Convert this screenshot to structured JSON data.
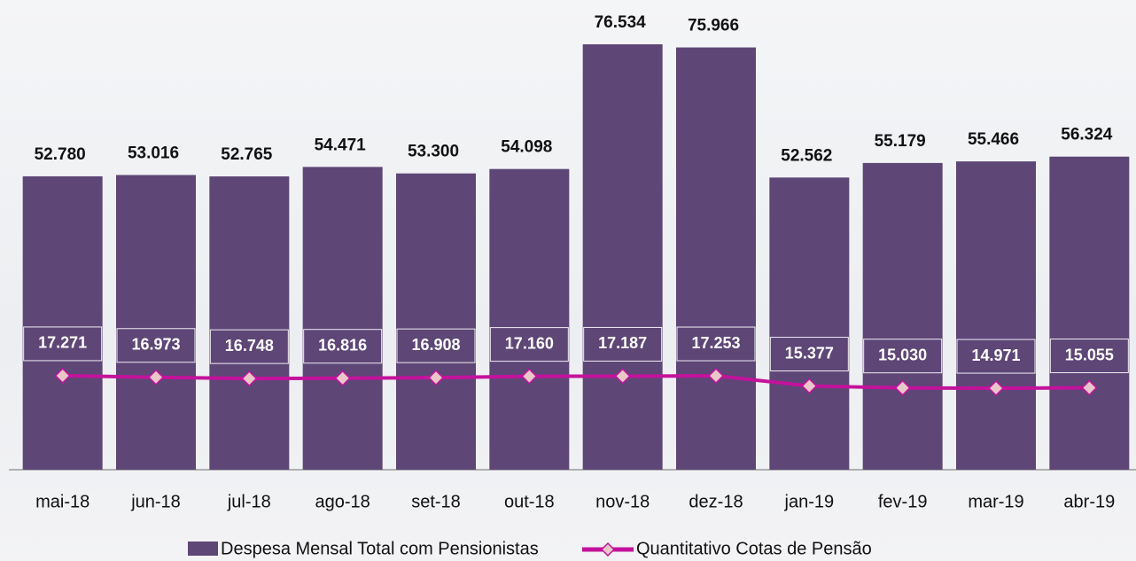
{
  "chart_data": {
    "type": "bar",
    "categories": [
      "mai-18",
      "jun-18",
      "jul-18",
      "ago-18",
      "set-18",
      "out-18",
      "nov-18",
      "dez-18",
      "jan-19",
      "fev-19",
      "mar-19",
      "abr-19"
    ],
    "series": [
      {
        "name": "Despesa Mensal Total com Pensionistas",
        "type": "bar",
        "color": "#5e4677",
        "values": [
          52780,
          53016,
          52765,
          54471,
          53300,
          54098,
          76534,
          75966,
          52562,
          55179,
          55466,
          56324
        ],
        "value_labels": [
          "52.780",
          "53.016",
          "52.765",
          "54.471",
          "53.300",
          "54.098",
          "76.534",
          "75.966",
          "52.562",
          "55.179",
          "55.466",
          "56.324"
        ]
      },
      {
        "name": "Quantitativo Cotas de Pensão",
        "type": "line",
        "axis": "y2",
        "color": "#c4129c",
        "marker_color": "#e9c7c9",
        "values": [
          17271,
          16973,
          16748,
          16816,
          16908,
          17160,
          17187,
          17253,
          15377,
          15030,
          14971,
          15055
        ],
        "value_labels": [
          "17.271",
          "16.973",
          "16.748",
          "16.816",
          "16.908",
          "17.160",
          "17.187",
          "17.253",
          "15.377",
          "15.030",
          "14.971",
          "15.055"
        ]
      }
    ],
    "ylim": [
      0,
      84500
    ],
    "y2lim": [
      0,
      86300
    ]
  }
}
